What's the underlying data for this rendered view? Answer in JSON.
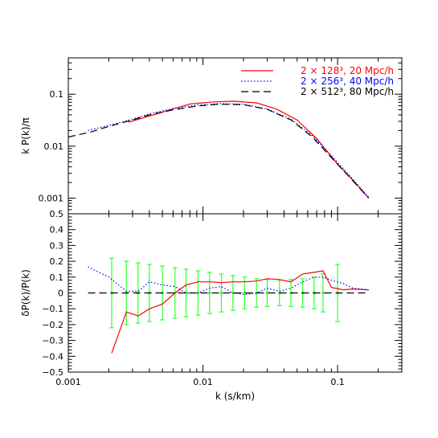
{
  "chart_data": [
    {
      "type": "line",
      "panel": "top",
      "ylabel": "k P(k)/π",
      "xscale": "log",
      "yscale": "log",
      "xlim": [
        0.001,
        0.3
      ],
      "ylim": [
        0.0005,
        0.5
      ],
      "ytick_labels": [
        {
          "value": 0.001,
          "label": "0.001"
        },
        {
          "value": 0.01,
          "label": "0.01"
        },
        {
          "value": 0.1,
          "label": "0.1"
        }
      ],
      "legend_position": "top-right",
      "series": [
        {
          "name": "2 × 128³, 20 Mpc/h",
          "color": "#ff0000",
          "dash": "solid",
          "x": [
            0.0028,
            0.005,
            0.008,
            0.012,
            0.017,
            0.025,
            0.035,
            0.05,
            0.07,
            0.1,
            0.13,
            0.17
          ],
          "y": [
            0.029,
            0.045,
            0.065,
            0.071,
            0.073,
            0.068,
            0.052,
            0.032,
            0.014,
            0.0045,
            0.0022,
            0.001
          ]
        },
        {
          "name": "2 × 256³, 40 Mpc/h",
          "color": "#0000ff",
          "dash": "dotted",
          "x": [
            0.0014,
            0.002,
            0.003,
            0.004,
            0.006,
            0.009,
            0.013,
            0.02,
            0.03,
            0.045,
            0.065,
            0.09,
            0.12,
            0.17
          ],
          "y": [
            0.02,
            0.025,
            0.033,
            0.042,
            0.053,
            0.062,
            0.066,
            0.064,
            0.052,
            0.033,
            0.016,
            0.0065,
            0.0029,
            0.00105
          ]
        },
        {
          "name": "2 × 512³, 80 Mpc/h",
          "color": "#000000",
          "dash": "dashed",
          "x": [
            0.001,
            0.0015,
            0.002,
            0.003,
            0.004,
            0.006,
            0.009,
            0.013,
            0.02,
            0.03,
            0.045,
            0.065,
            0.09,
            0.12,
            0.17
          ],
          "y": [
            0.015,
            0.019,
            0.024,
            0.032,
            0.04,
            0.05,
            0.059,
            0.064,
            0.063,
            0.051,
            0.032,
            0.015,
            0.006,
            0.0027,
            0.001
          ]
        }
      ]
    },
    {
      "type": "line",
      "panel": "bottom",
      "xlabel": "k (s/km)",
      "ylabel": "δP(k)/P(k)",
      "xscale": "log",
      "xlim": [
        0.001,
        0.3
      ],
      "ylim": [
        -0.5,
        0.5
      ],
      "xtick_labels": [
        {
          "value": 0.001,
          "label": "0.001"
        },
        {
          "value": 0.01,
          "label": "0.01"
        },
        {
          "value": 0.1,
          "label": "0.1"
        }
      ],
      "ytick_labels": [
        {
          "value": -0.5,
          "label": "−0.5"
        },
        {
          "value": -0.4,
          "label": "−0.4"
        },
        {
          "value": -0.3,
          "label": "−0.3"
        },
        {
          "value": -0.2,
          "label": "−0.2"
        },
        {
          "value": -0.1,
          "label": "−0.1"
        },
        {
          "value": 0,
          "label": "0"
        },
        {
          "value": 0.1,
          "label": "0.1"
        },
        {
          "value": 0.2,
          "label": "0.2"
        },
        {
          "value": 0.3,
          "label": "0.3"
        },
        {
          "value": 0.4,
          "label": "0.4"
        },
        {
          "value": 0.5,
          "label": "0.5"
        }
      ],
      "series": [
        {
          "color": "#ff0000",
          "dash": "solid",
          "x": [
            0.0021,
            0.0027,
            0.0033,
            0.004,
            0.005,
            0.0062,
            0.0075,
            0.0092,
            0.0112,
            0.0137,
            0.0167,
            0.0204,
            0.025,
            0.03,
            0.037,
            0.045,
            0.055,
            0.067,
            0.078,
            0.09,
            0.11,
            0.13,
            0.17
          ],
          "y": [
            -0.38,
            -0.12,
            -0.145,
            -0.1,
            -0.07,
            0.0,
            0.05,
            0.07,
            0.07,
            0.065,
            0.07,
            0.07,
            0.075,
            0.09,
            0.085,
            0.07,
            0.12,
            0.13,
            0.14,
            0.035,
            0.02,
            0.025,
            0.02
          ]
        },
        {
          "color": "#0000ff",
          "dash": "dotted",
          "x": [
            0.0014,
            0.002,
            0.0027,
            0.0033,
            0.004,
            0.005,
            0.0062,
            0.0075,
            0.0092,
            0.0112,
            0.0137,
            0.0167,
            0.0204,
            0.025,
            0.03,
            0.037,
            0.045,
            0.055,
            0.067,
            0.078,
            0.09,
            0.11,
            0.13,
            0.17
          ],
          "y": [
            0.165,
            0.1,
            0.01,
            0.01,
            0.07,
            0.05,
            0.04,
            0.0,
            0.0,
            0.03,
            0.04,
            0.0,
            -0.01,
            0.0,
            0.03,
            0.01,
            0.03,
            0.07,
            0.1,
            0.1,
            0.08,
            0.06,
            0.03,
            0.02
          ]
        },
        {
          "color": "#000000",
          "dash": "dashed",
          "x": [
            0.0014,
            0.17
          ],
          "y": [
            0.0,
            0.0
          ]
        }
      ],
      "error_bars": {
        "color": "#33ff33",
        "x": [
          0.0021,
          0.0027,
          0.0033,
          0.004,
          0.005,
          0.0062,
          0.0075,
          0.0092,
          0.0112,
          0.0137,
          0.0167,
          0.0204,
          0.025,
          0.03,
          0.037,
          0.045,
          0.055,
          0.067,
          0.078,
          0.1
        ],
        "y": [
          0.0,
          0.0,
          0.0,
          0.0,
          0.0,
          0.0,
          0.0,
          0.0,
          0.0,
          0.0,
          0.0,
          0.0,
          0.0,
          0.0,
          0.0,
          0.0,
          0.0,
          0.0,
          0.0,
          0.0
        ],
        "err": [
          0.22,
          0.2,
          0.19,
          0.18,
          0.17,
          0.16,
          0.15,
          0.14,
          0.13,
          0.12,
          0.11,
          0.1,
          0.09,
          0.085,
          0.08,
          0.085,
          0.09,
          0.1,
          0.12,
          0.18
        ]
      }
    }
  ]
}
